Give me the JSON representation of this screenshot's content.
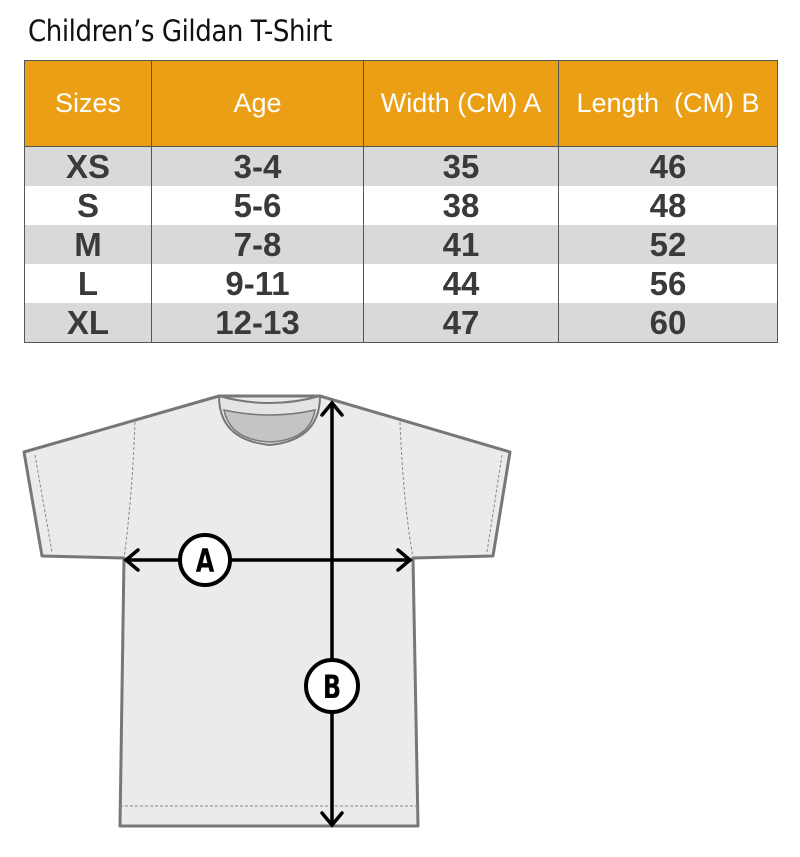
{
  "title": "Children’s Gildan T-Shirt",
  "table": {
    "headers": [
      "Sizes",
      "Age",
      "Width (CM) A",
      "Length  (CM) B"
    ],
    "rows": [
      [
        "XS",
        "3-4",
        "35",
        "46"
      ],
      [
        "S",
        "5-6",
        "38",
        "48"
      ],
      [
        "M",
        "7-8",
        "41",
        "52"
      ],
      [
        "L",
        "9-11",
        "44",
        "56"
      ],
      [
        "XL",
        "12-13",
        "47",
        "60"
      ]
    ]
  },
  "diagram": {
    "label_a": "A",
    "label_b": "B"
  },
  "colors": {
    "header": "#eb9f15",
    "stripe": "#d9d9d9",
    "shirt": "#ebebeb"
  }
}
